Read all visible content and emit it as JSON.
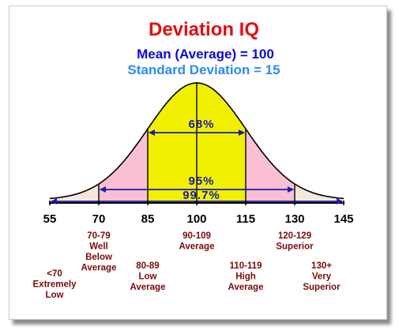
{
  "title": "Deviation IQ",
  "subtitle_mean": "Mean (Average) = 100",
  "subtitle_sd": "Standard Deviation = 15",
  "colors": {
    "title": "#e01010",
    "mean_text": "#0a0ad0",
    "sd_text": "#2a8cf0",
    "band_1sd": "#f0f000",
    "band_2sd": "#f9bfd2",
    "band_3sd": "#f7e7d9",
    "arrow": "#1a1ab0",
    "category_text": "#7a0a0a"
  },
  "chart_data": {
    "type": "area",
    "title": "Deviation IQ",
    "mean": 100,
    "sd": 15,
    "xlim": [
      55,
      145
    ],
    "x_ticks": [
      55,
      70,
      85,
      100,
      115,
      130,
      145
    ],
    "bands": [
      {
        "from": 85,
        "to": 115,
        "percent": "68%"
      },
      {
        "from": 70,
        "to": 130,
        "percent": "95%"
      },
      {
        "from": 55,
        "to": 145,
        "percent": "99.7%"
      }
    ],
    "categories": [
      {
        "range": "<70",
        "label": "Extremely Low",
        "lines": [
          "<70",
          "Extremely",
          "Low"
        ],
        "center": 55,
        "row": 3
      },
      {
        "range": "70-79",
        "label": "Well Below Average",
        "lines": [
          "70-79",
          "Well",
          "Below",
          "Average"
        ],
        "center": 70,
        "row": 1
      },
      {
        "range": "80-89",
        "label": "Low Average",
        "lines": [
          "80-89",
          "Low",
          "Average"
        ],
        "center": 85,
        "row": 2
      },
      {
        "range": "90-109",
        "label": "Average",
        "lines": [
          "90-109",
          "Average"
        ],
        "center": 100,
        "row": 1
      },
      {
        "range": "110-119",
        "label": "High Average",
        "lines": [
          "110-119",
          "High",
          "Average"
        ],
        "center": 115,
        "row": 2
      },
      {
        "range": "120-129",
        "label": "Superior",
        "lines": [
          "120-129",
          "Superior"
        ],
        "center": 130,
        "row": 1
      },
      {
        "range": "130+",
        "label": "Very Superior",
        "lines": [
          "130+",
          "Very",
          "Superior"
        ],
        "center": 145,
        "row": 2
      }
    ]
  }
}
